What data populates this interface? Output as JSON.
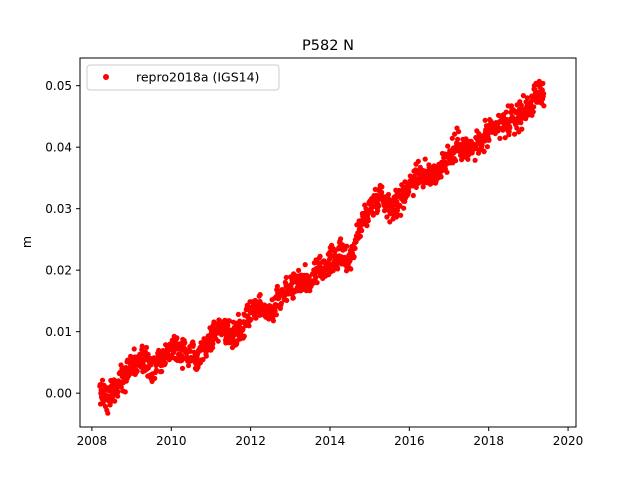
{
  "chart_data": {
    "type": "scatter",
    "title": "P582 N",
    "xlabel": "",
    "ylabel": "m",
    "xlim": [
      2007.7,
      2020.2
    ],
    "ylim": [
      -0.0055,
      0.0545
    ],
    "xticks": [
      2008,
      2010,
      2012,
      2014,
      2016,
      2018,
      2020
    ],
    "xtick_labels": [
      "2008",
      "2010",
      "2012",
      "2014",
      "2016",
      "2018",
      "2020"
    ],
    "yticks": [
      0.0,
      0.01,
      0.02,
      0.03,
      0.04,
      0.05
    ],
    "ytick_labels": [
      "0.00",
      "0.01",
      "0.02",
      "0.03",
      "0.04",
      "0.05"
    ],
    "grid": false,
    "legend_position": "top-left",
    "series": [
      {
        "name": "repro2018a (IGS14)",
        "color": "#ff0000",
        "marker": "circle",
        "x": [
          2008.2,
          2008.4,
          2008.6,
          2008.8,
          2009.0,
          2009.25,
          2009.5,
          2009.75,
          2010.0,
          2010.25,
          2010.5,
          2010.75,
          2011.0,
          2011.25,
          2011.5,
          2011.75,
          2012.0,
          2012.25,
          2012.5,
          2012.75,
          2013.0,
          2013.25,
          2013.5,
          2013.75,
          2014.0,
          2014.25,
          2014.5,
          2014.75,
          2015.0,
          2015.25,
          2015.5,
          2015.75,
          2016.0,
          2016.25,
          2016.5,
          2016.75,
          2017.0,
          2017.25,
          2017.5,
          2017.75,
          2018.0,
          2018.25,
          2018.5,
          2018.75,
          2019.0,
          2019.25,
          2019.4
        ],
        "y": [
          0.0,
          -0.0005,
          0.001,
          0.003,
          0.0045,
          0.0055,
          0.004,
          0.005,
          0.0075,
          0.007,
          0.0055,
          0.007,
          0.009,
          0.011,
          0.0095,
          0.0105,
          0.0135,
          0.014,
          0.013,
          0.016,
          0.0175,
          0.0185,
          0.018,
          0.02,
          0.0215,
          0.0225,
          0.0215,
          0.027,
          0.03,
          0.0325,
          0.0305,
          0.031,
          0.034,
          0.036,
          0.035,
          0.0365,
          0.0385,
          0.0405,
          0.0395,
          0.0405,
          0.042,
          0.0435,
          0.044,
          0.045,
          0.0465,
          0.0485,
          0.0495
        ]
      }
    ]
  }
}
